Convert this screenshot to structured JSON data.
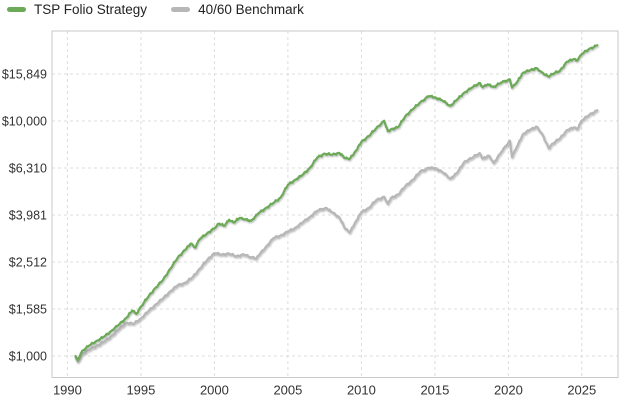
{
  "legend": {
    "series": [
      {
        "label": "TSP Folio Strategy",
        "color": "#6caa58"
      },
      {
        "label": "40/60 Benchmark",
        "color": "#b7b7b7"
      }
    ]
  },
  "chart_data": {
    "type": "line",
    "title": "",
    "xlabel": "",
    "ylabel": "",
    "y_scale": "log",
    "grid": "dashed",
    "legend_position": "top-left",
    "background_color": "#ffffff",
    "grid_color": "#dcdcdc",
    "border_color": "#c9c9c9",
    "xlim": [
      1988.95,
      2027.46
    ],
    "ylim": [
      810,
      24150
    ],
    "x_ticks": [
      {
        "value": 1990,
        "label": "1990"
      },
      {
        "value": 1995,
        "label": "1995"
      },
      {
        "value": 2000,
        "label": "2000"
      },
      {
        "value": 2005,
        "label": "2005"
      },
      {
        "value": 2010,
        "label": "2010"
      },
      {
        "value": 2015,
        "label": "2015"
      },
      {
        "value": 2020,
        "label": "2020"
      },
      {
        "value": 2025,
        "label": "2025"
      }
    ],
    "y_ticks": [
      {
        "value": 1000,
        "label": "$1,000"
      },
      {
        "value": 1585,
        "label": "$1,585"
      },
      {
        "value": 2512,
        "label": "$2,512"
      },
      {
        "value": 3981,
        "label": "$3,981"
      },
      {
        "value": 6310,
        "label": "$6,310"
      },
      {
        "value": 10000,
        "label": "$10,000"
      },
      {
        "value": 15849,
        "label": "$15,849"
      }
    ],
    "series": [
      {
        "name": "TSP Folio Strategy",
        "color": "#6caa58",
        "points": [
          [
            1990.55,
            1000
          ],
          [
            1990.7,
            960
          ],
          [
            1991,
            1050
          ],
          [
            1991.5,
            1110
          ],
          [
            1992,
            1160
          ],
          [
            1992.5,
            1210
          ],
          [
            1993,
            1280
          ],
          [
            1993.5,
            1360
          ],
          [
            1994,
            1450
          ],
          [
            1994.4,
            1560
          ],
          [
            1994.7,
            1510
          ],
          [
            1995,
            1620
          ],
          [
            1995.5,
            1790
          ],
          [
            1996,
            1950
          ],
          [
            1996.5,
            2110
          ],
          [
            1997,
            2350
          ],
          [
            1997.5,
            2620
          ],
          [
            1998,
            2830
          ],
          [
            1998.4,
            3010
          ],
          [
            1998.7,
            2890
          ],
          [
            1999,
            3150
          ],
          [
            1999.5,
            3320
          ],
          [
            2000,
            3500
          ],
          [
            2000.3,
            3660
          ],
          [
            2000.7,
            3580
          ],
          [
            2001,
            3800
          ],
          [
            2001.3,
            3700
          ],
          [
            2001.7,
            3860
          ],
          [
            2002,
            3820
          ],
          [
            2002.5,
            3760
          ],
          [
            2003,
            4050
          ],
          [
            2003.5,
            4260
          ],
          [
            2004,
            4470
          ],
          [
            2004.5,
            4720
          ],
          [
            2005,
            5350
          ],
          [
            2005.5,
            5620
          ],
          [
            2006,
            5900
          ],
          [
            2006.5,
            6320
          ],
          [
            2007,
            7000
          ],
          [
            2007.5,
            7260
          ],
          [
            2008,
            7190
          ],
          [
            2008.5,
            7310
          ],
          [
            2008.9,
            6940
          ],
          [
            2009.2,
            6900
          ],
          [
            2009.6,
            7420
          ],
          [
            2010,
            8150
          ],
          [
            2010.5,
            8620
          ],
          [
            2011,
            9300
          ],
          [
            2011.55,
            10020
          ],
          [
            2011.8,
            9050
          ],
          [
            2012,
            9200
          ],
          [
            2012.5,
            9420
          ],
          [
            2013,
            10500
          ],
          [
            2013.5,
            11230
          ],
          [
            2014,
            12000
          ],
          [
            2014.6,
            12780
          ],
          [
            2015,
            12600
          ],
          [
            2015.5,
            12240
          ],
          [
            2016.05,
            11580
          ],
          [
            2016.5,
            12320
          ],
          [
            2017,
            13200
          ],
          [
            2017.5,
            13840
          ],
          [
            2018.05,
            14520
          ],
          [
            2018.25,
            13900
          ],
          [
            2018.6,
            14320
          ],
          [
            2019,
            13950
          ],
          [
            2019.5,
            14560
          ],
          [
            2020.1,
            15050
          ],
          [
            2020.25,
            13850
          ],
          [
            2020.6,
            14680
          ],
          [
            2021,
            16050
          ],
          [
            2021.5,
            16480
          ],
          [
            2021.95,
            16780
          ],
          [
            2022.3,
            16050
          ],
          [
            2022.75,
            15420
          ],
          [
            2023,
            15850
          ],
          [
            2023.5,
            16340
          ],
          [
            2024,
            17900
          ],
          [
            2024.45,
            18350
          ],
          [
            2024.7,
            18100
          ],
          [
            2025,
            19300
          ],
          [
            2025.5,
            20250
          ],
          [
            2026.05,
            21000
          ]
        ]
      },
      {
        "name": "40/60 Benchmark",
        "color": "#b7b7b7",
        "points": [
          [
            1990.55,
            990
          ],
          [
            1990.7,
            945
          ],
          [
            1991,
            1020
          ],
          [
            1991.5,
            1065
          ],
          [
            1992,
            1105
          ],
          [
            1992.5,
            1150
          ],
          [
            1993,
            1215
          ],
          [
            1993.5,
            1300
          ],
          [
            1994,
            1385
          ],
          [
            1994.5,
            1370
          ],
          [
            1995,
            1445
          ],
          [
            1995.5,
            1550
          ],
          [
            1996,
            1655
          ],
          [
            1996.5,
            1760
          ],
          [
            1997,
            1885
          ],
          [
            1997.5,
            2000
          ],
          [
            1998,
            2045
          ],
          [
            1998.5,
            2160
          ],
          [
            1999,
            2350
          ],
          [
            1999.5,
            2560
          ],
          [
            2000,
            2740
          ],
          [
            2000.5,
            2700
          ],
          [
            2001,
            2725
          ],
          [
            2001.5,
            2655
          ],
          [
            2002,
            2705
          ],
          [
            2002.5,
            2625
          ],
          [
            2002.85,
            2600
          ],
          [
            2003,
            2680
          ],
          [
            2003.5,
            2905
          ],
          [
            2004,
            3170
          ],
          [
            2004.5,
            3255
          ],
          [
            2005,
            3380
          ],
          [
            2005.5,
            3505
          ],
          [
            2006,
            3705
          ],
          [
            2006.5,
            3905
          ],
          [
            2007,
            4150
          ],
          [
            2007.6,
            4270
          ],
          [
            2008,
            4090
          ],
          [
            2008.5,
            3890
          ],
          [
            2008.9,
            3480
          ],
          [
            2009.2,
            3350
          ],
          [
            2009.6,
            3720
          ],
          [
            2010,
            4100
          ],
          [
            2010.5,
            4260
          ],
          [
            2011,
            4600
          ],
          [
            2011.55,
            4760
          ],
          [
            2011.8,
            4440
          ],
          [
            2012,
            4700
          ],
          [
            2012.5,
            4860
          ],
          [
            2013,
            5300
          ],
          [
            2013.5,
            5610
          ],
          [
            2014,
            6100
          ],
          [
            2014.6,
            6320
          ],
          [
            2015,
            6300
          ],
          [
            2015.5,
            6080
          ],
          [
            2016.05,
            5680
          ],
          [
            2016.5,
            6010
          ],
          [
            2017,
            6700
          ],
          [
            2017.5,
            6950
          ],
          [
            2018.05,
            7300
          ],
          [
            2018.25,
            6920
          ],
          [
            2018.7,
            7120
          ],
          [
            2019,
            6620
          ],
          [
            2019.5,
            7350
          ],
          [
            2020.1,
            8250
          ],
          [
            2020.25,
            7020
          ],
          [
            2020.6,
            7820
          ],
          [
            2021,
            8800
          ],
          [
            2021.5,
            9200
          ],
          [
            2021.95,
            9460
          ],
          [
            2022.3,
            8800
          ],
          [
            2022.75,
            7650
          ],
          [
            2023,
            8000
          ],
          [
            2023.5,
            8420
          ],
          [
            2024,
            9150
          ],
          [
            2024.45,
            9380
          ],
          [
            2024.7,
            9250
          ],
          [
            2025,
            10050
          ],
          [
            2025.5,
            10620
          ],
          [
            2026.05,
            11100
          ]
        ]
      }
    ]
  }
}
